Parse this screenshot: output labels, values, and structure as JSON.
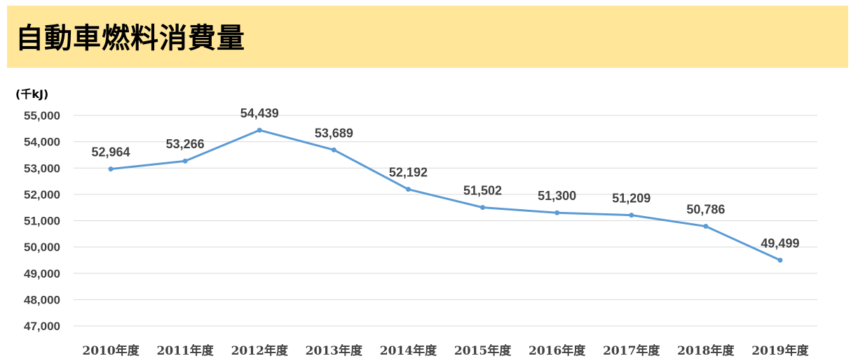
{
  "title": "自動車燃料消費量",
  "colors": {
    "banner": "#ffe699",
    "line": "#5b9bd5",
    "grid": "#d9d9d9",
    "text": "#404040"
  },
  "chart_data": {
    "type": "line",
    "unit_label": "(千kJ)",
    "categories": [
      "2010年度",
      "2011年度",
      "2012年度",
      "2013年度",
      "2014年度",
      "2015年度",
      "2016年度",
      "2017年度",
      "2018年度",
      "2019年度"
    ],
    "series": [
      {
        "values": [
          52964,
          53266,
          54439,
          53689,
          52192,
          51502,
          51300,
          51209,
          50786,
          49499
        ],
        "labels": [
          "52,964",
          "53,266",
          "54,439",
          "53,689",
          "52,192",
          "51,502",
          "51,300",
          "51,209",
          "50,786",
          "49,499"
        ]
      }
    ],
    "ylim": [
      47000,
      55000
    ],
    "yticks": [
      {
        "value": 47000,
        "label": "47,000"
      },
      {
        "value": 48000,
        "label": "48,000"
      },
      {
        "value": 49000,
        "label": "49,000"
      },
      {
        "value": 50000,
        "label": "50,000"
      },
      {
        "value": 51000,
        "label": "51,000"
      },
      {
        "value": 52000,
        "label": "52,000"
      },
      {
        "value": 53000,
        "label": "53,000"
      },
      {
        "value": 54000,
        "label": "54,000"
      },
      {
        "value": 55000,
        "label": "55,000"
      }
    ],
    "grid": true,
    "legend": "none"
  }
}
